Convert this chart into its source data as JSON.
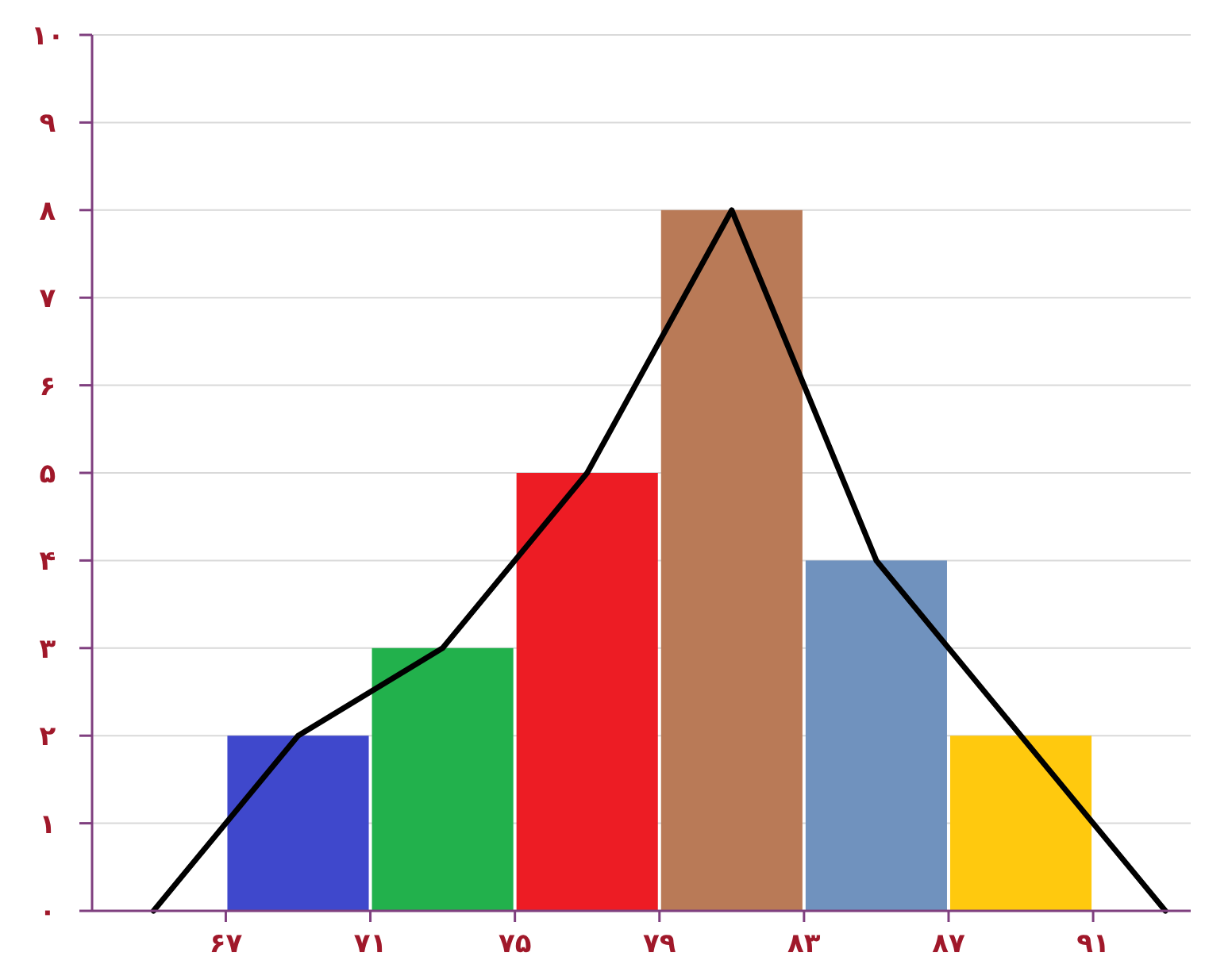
{
  "chart_data": {
    "type": "histogram",
    "grid": "y",
    "xlim": [
      63.3,
      93.7
    ],
    "xticks": [
      {
        "value": 67,
        "label": "۶۷"
      },
      {
        "value": 71,
        "label": "۷۱"
      },
      {
        "value": 75,
        "label": "۷۵"
      },
      {
        "value": 79,
        "label": "۷۹"
      },
      {
        "value": 83,
        "label": "۸۳"
      },
      {
        "value": 87,
        "label": "۸۷"
      },
      {
        "value": 91,
        "label": "۹۱"
      }
    ],
    "ylim": [
      0,
      10
    ],
    "yticks": [
      {
        "value": 0,
        "label": "۰"
      },
      {
        "value": 1,
        "label": "۱"
      },
      {
        "value": 2,
        "label": "۲"
      },
      {
        "value": 3,
        "label": "۳"
      },
      {
        "value": 4,
        "label": "۴"
      },
      {
        "value": 5,
        "label": "۵"
      },
      {
        "value": 6,
        "label": "۶"
      },
      {
        "value": 7,
        "label": "۷"
      },
      {
        "value": 8,
        "label": "۸"
      },
      {
        "value": 9,
        "label": "۹"
      },
      {
        "value": 10,
        "label": "۱۰"
      }
    ],
    "series": [
      {
        "bins": [
          67,
          71,
          75,
          79,
          83,
          87,
          91
        ],
        "values": [
          2,
          3,
          5,
          8,
          4,
          2
        ],
        "colors": [
          "#3f48cc",
          "#22b14c",
          "#ed1c24",
          "#b97a57",
          "#7092be",
          "#ffc90e"
        ]
      },
      {
        "type": "line",
        "x": [
          65,
          69,
          73,
          77,
          81,
          85,
          89,
          93
        ],
        "values": [
          0,
          2,
          3,
          5,
          8,
          4,
          2,
          0
        ],
        "color": "#000000"
      }
    ]
  }
}
